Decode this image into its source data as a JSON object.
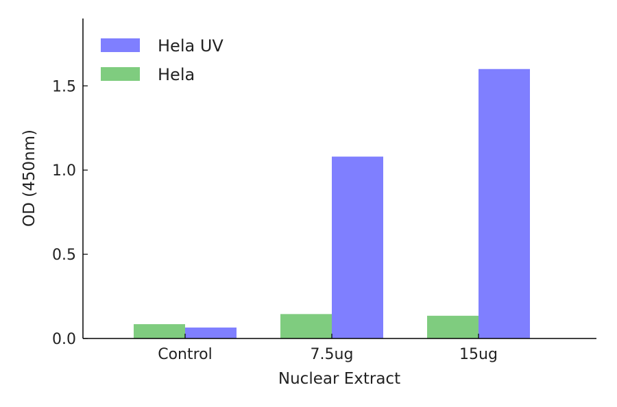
{
  "chart_data": {
    "type": "bar",
    "title": "",
    "xlabel": "Nuclear Extract",
    "ylabel": "OD (450nm)",
    "categories": [
      "Control",
      "7.5ug",
      "15ug"
    ],
    "series": [
      {
        "name": "Hela",
        "color": "#7fcc7f",
        "values": [
          0.085,
          0.145,
          0.135
        ]
      },
      {
        "name": "Hela UV",
        "color": "#7f7fff",
        "values": [
          0.065,
          1.08,
          1.6
        ]
      }
    ],
    "ylim": [
      0,
      1.9
    ],
    "yticks": [
      "0.0",
      "0.5",
      "1.0",
      "1.5"
    ],
    "legend_order": [
      "Hela UV",
      "Hela"
    ],
    "legend_position": "top-left",
    "grid": false
  }
}
